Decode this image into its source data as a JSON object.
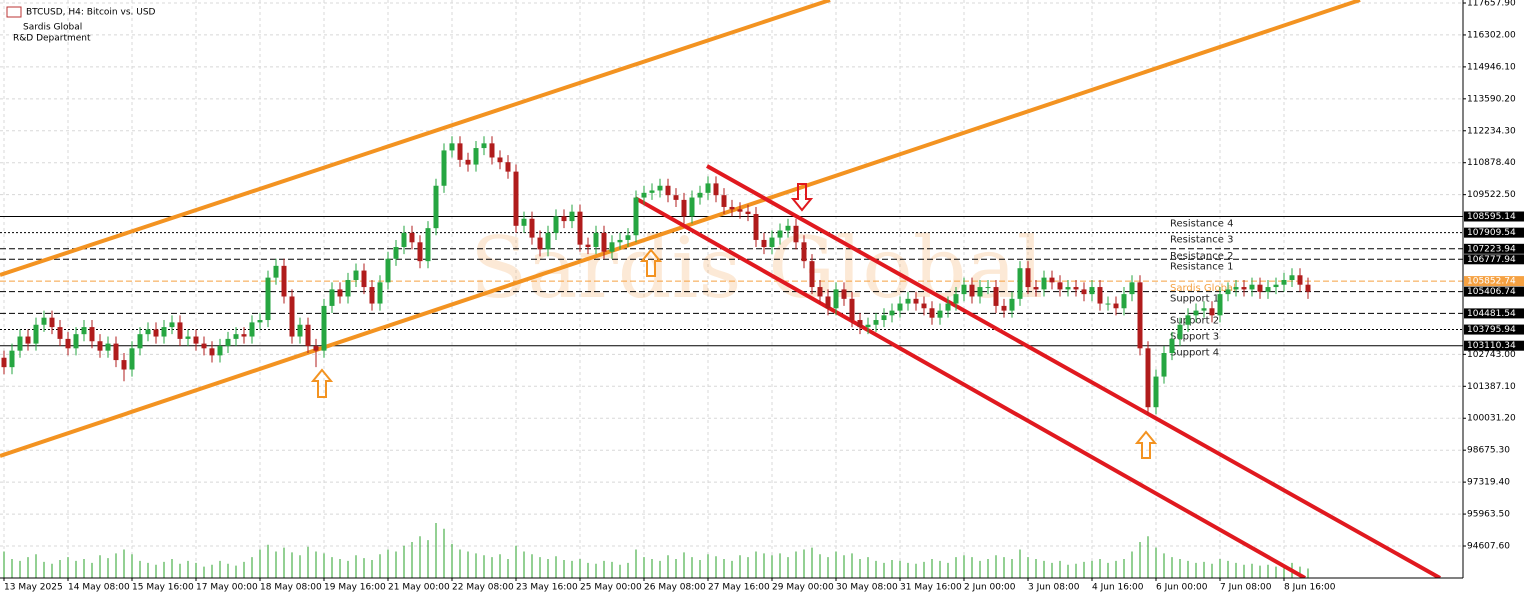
{
  "chart_data": {
    "type": "candlestick",
    "title": "BTCUSD, H4:  Bitcoin vs. USD",
    "subtitle": "Sardis Global",
    "department": "R&D Department",
    "watermark": "Sardis Global",
    "up_color": "#26a641",
    "down_color": "#b01c1c",
    "volume_color": "#27a027",
    "grid": true,
    "categories": [
      "13 May 2025",
      null,
      null,
      null,
      null,
      null,
      null,
      null,
      "14 May 08:00",
      null,
      null,
      null,
      null,
      null,
      null,
      null,
      "15 May 16:00",
      null,
      null,
      null,
      null,
      null,
      null,
      null,
      "17 May 00:00",
      null,
      null,
      null,
      null,
      null,
      null,
      null,
      "18 May 08:00",
      null,
      null,
      null,
      null,
      null,
      null,
      null,
      "19 May 16:00",
      null,
      null,
      null,
      null,
      null,
      null,
      null,
      "21 May 00:00",
      null,
      null,
      null,
      null,
      null,
      null,
      null,
      "22 May 08:00",
      null,
      null,
      null,
      null,
      null,
      null,
      null,
      "23 May 16:00",
      null,
      null,
      null,
      null,
      null,
      null,
      null,
      "25 May 00:00",
      null,
      null,
      null,
      null,
      null,
      null,
      null,
      "26 May 08:00",
      null,
      null,
      null,
      null,
      null,
      null,
      null,
      "27 May 16:00",
      null,
      null,
      null,
      null,
      null,
      null,
      null,
      "29 May 00:00",
      null,
      null,
      null,
      null,
      null,
      null,
      null,
      "30 May 08:00",
      null,
      null,
      null,
      null,
      null,
      null,
      null,
      "31 May 16:00",
      null,
      null,
      null,
      null,
      null,
      null,
      null,
      "2 Jun 00:00",
      null,
      null,
      null,
      null,
      null,
      null,
      null,
      "3 Jun 08:00",
      null,
      null,
      null,
      null,
      null,
      null,
      null,
      "4 Jun 16:00",
      null,
      null,
      null,
      null,
      null,
      null,
      null,
      "6 Jun 00:00",
      null,
      null,
      null,
      null,
      null,
      null,
      null,
      "7 Jun 08:00",
      null,
      null,
      null,
      null,
      null,
      null,
      null,
      "8 Jun 16:00",
      null,
      null,
      null
    ],
    "open": [
      102600,
      102200,
      102900,
      103500,
      103200,
      104000,
      104300,
      103900,
      103400,
      103000,
      103600,
      103900,
      103300,
      102900,
      103200,
      102500,
      102100,
      103000,
      103600,
      103800,
      103500,
      103900,
      104100,
      103400,
      103500,
      103200,
      103000,
      102700,
      103100,
      103400,
      103600,
      103500,
      104100,
      104200,
      106000,
      106500,
      105200,
      103500,
      104000,
      103100,
      102900,
      104800,
      105500,
      105200,
      105900,
      106300,
      105600,
      104900,
      105800,
      106800,
      107300,
      107900,
      107500,
      106700,
      108100,
      109900,
      111400,
      111700,
      111000,
      110800,
      111500,
      111700,
      111100,
      110900,
      110500,
      108200,
      108500,
      107700,
      107200,
      107900,
      108600,
      108400,
      108800,
      107400,
      107300,
      107900,
      107100,
      107500,
      107600,
      107800,
      109400,
      109600,
      109700,
      109900,
      109500,
      109300,
      108600,
      109400,
      109600,
      110000,
      109500,
      109000,
      108900,
      108800,
      108700,
      107600,
      107300,
      107700,
      108000,
      108200,
      107500,
      106700,
      105600,
      105200,
      104700,
      105500,
      105100,
      104200,
      103900,
      104000,
      104200,
      104400,
      104600,
      104900,
      105100,
      104900,
      104700,
      104300,
      104600,
      104900,
      105300,
      105700,
      105200,
      105600,
      105600,
      104800,
      104600,
      105100,
      106400,
      105600,
      105500,
      106000,
      105800,
      105500,
      105600,
      105500,
      105300,
      105600,
      104900,
      104900,
      104700,
      105300,
      105800,
      103000,
      100500,
      101800,
      102800,
      103400,
      104000,
      104400,
      104600,
      104700,
      104400,
      105300,
      105500,
      105600,
      105500,
      105700,
      105400,
      105600,
      105700,
      105900,
      106100,
      105700
    ],
    "high": [
      102900,
      103200,
      103800,
      103800,
      104300,
      104600,
      104600,
      104200,
      103700,
      103900,
      104200,
      104200,
      103600,
      103500,
      103500,
      102800,
      103300,
      103900,
      104100,
      104100,
      104200,
      104400,
      104400,
      103800,
      103800,
      103500,
      103300,
      103400,
      103700,
      103900,
      103900,
      104400,
      104500,
      106300,
      106800,
      106800,
      105500,
      104300,
      104300,
      103400,
      105100,
      105800,
      105800,
      106200,
      106600,
      106600,
      105900,
      106100,
      107100,
      107600,
      108200,
      108200,
      107800,
      108400,
      110200,
      111700,
      112000,
      112000,
      111300,
      111800,
      112000,
      112000,
      111400,
      111200,
      110800,
      108800,
      108800,
      108000,
      108200,
      108900,
      108900,
      109100,
      109100,
      107700,
      108200,
      108200,
      107800,
      107900,
      108100,
      109700,
      109900,
      110000,
      110200,
      110200,
      109800,
      109600,
      109700,
      109900,
      110300,
      110300,
      109800,
      109300,
      109200,
      109100,
      109000,
      107900,
      108000,
      108300,
      108500,
      108500,
      107800,
      107000,
      105900,
      105500,
      105800,
      105800,
      105400,
      104500,
      104300,
      104500,
      104700,
      104900,
      105200,
      105400,
      105400,
      105200,
      105000,
      104900,
      105200,
      105600,
      106000,
      106000,
      105900,
      105900,
      105900,
      105100,
      105400,
      106700,
      106700,
      105900,
      106300,
      106300,
      106100,
      105900,
      105900,
      105800,
      105900,
      105900,
      105200,
      105200,
      105600,
      106100,
      106100,
      103300,
      102100,
      103100,
      103700,
      104300,
      104700,
      104900,
      105000,
      105000,
      105600,
      105800,
      105900,
      105900,
      106000,
      106000,
      105900,
      106000,
      106200,
      106400,
      106400,
      106000
    ],
    "low": [
      101900,
      101900,
      102600,
      102900,
      102900,
      103700,
      103600,
      103100,
      102700,
      102700,
      103300,
      103000,
      102600,
      102600,
      102200,
      101600,
      101800,
      102700,
      103300,
      103200,
      103200,
      103600,
      103100,
      103100,
      102900,
      102700,
      102400,
      102400,
      102800,
      103100,
      103200,
      103200,
      103800,
      103900,
      105700,
      104900,
      103200,
      103200,
      102800,
      102200,
      102600,
      104500,
      104900,
      104900,
      105600,
      105300,
      104600,
      104600,
      105500,
      106500,
      107000,
      107200,
      106400,
      106400,
      107800,
      109600,
      111100,
      110700,
      110500,
      110500,
      111200,
      110800,
      110600,
      110200,
      107900,
      107900,
      107400,
      106900,
      106900,
      107600,
      108100,
      108100,
      107100,
      107000,
      107000,
      106800,
      106800,
      107200,
      107300,
      107500,
      109100,
      109300,
      109400,
      109200,
      109000,
      108300,
      108300,
      109100,
      109300,
      109200,
      108700,
      108600,
      108500,
      108400,
      107300,
      107000,
      107000,
      107400,
      107700,
      107200,
      106400,
      105300,
      104900,
      104400,
      104400,
      104800,
      103900,
      103600,
      103600,
      103700,
      103900,
      104100,
      104300,
      104600,
      104600,
      104400,
      104000,
      104000,
      104300,
      104600,
      105000,
      104900,
      104900,
      105300,
      104500,
      104300,
      104300,
      104800,
      105300,
      105200,
      105200,
      105500,
      105200,
      105200,
      105200,
      105000,
      105000,
      104600,
      104600,
      104400,
      104400,
      105000,
      102700,
      100200,
      100200,
      101500,
      102500,
      103100,
      103700,
      104100,
      104300,
      104100,
      104100,
      105000,
      105200,
      105200,
      105200,
      105100,
      105100,
      105300,
      105400,
      105600,
      105400,
      105100
    ],
    "close": [
      102200,
      102900,
      103500,
      103200,
      104000,
      104300,
      103900,
      103400,
      103000,
      103600,
      103900,
      103300,
      102900,
      103200,
      102500,
      102100,
      103000,
      103600,
      103800,
      103500,
      103900,
      104100,
      103400,
      103500,
      103200,
      103000,
      102700,
      103100,
      103400,
      103600,
      103500,
      104100,
      104200,
      106000,
      106500,
      105200,
      103500,
      104000,
      103100,
      102900,
      104800,
      105500,
      105200,
      105900,
      106300,
      105600,
      104900,
      105800,
      106800,
      107300,
      107900,
      107500,
      106700,
      108100,
      109900,
      111400,
      111700,
      111000,
      110800,
      111500,
      111700,
      111100,
      110900,
      110500,
      108200,
      108500,
      107700,
      107200,
      107900,
      108600,
      108400,
      108800,
      107400,
      107300,
      107900,
      107100,
      107500,
      107600,
      107800,
      109400,
      109600,
      109700,
      109900,
      109500,
      109300,
      108600,
      109400,
      109600,
      110000,
      109500,
      109000,
      108900,
      108800,
      108700,
      107600,
      107300,
      107700,
      108000,
      108200,
      107500,
      106700,
      105600,
      105200,
      104700,
      105500,
      105100,
      104200,
      103900,
      104000,
      104200,
      104400,
      104600,
      104900,
      105100,
      104900,
      104700,
      104300,
      104600,
      104900,
      105300,
      105700,
      105200,
      105600,
      105600,
      104800,
      104600,
      105100,
      106400,
      105600,
      105500,
      106000,
      105800,
      105500,
      105600,
      105500,
      105300,
      105600,
      104900,
      104900,
      104700,
      105300,
      105800,
      103000,
      100500,
      101800,
      102800,
      103400,
      104000,
      104400,
      104600,
      104700,
      104400,
      105300,
      105500,
      105600,
      105500,
      105700,
      105400,
      105600,
      105700,
      105900,
      106100,
      105700,
      105400
    ],
    "volume": [
      28,
      20,
      18,
      22,
      25,
      17,
      15,
      19,
      22,
      18,
      20,
      16,
      24,
      21,
      26,
      30,
      25,
      18,
      16,
      14,
      17,
      20,
      15,
      18,
      16,
      12,
      14,
      18,
      15,
      13,
      17,
      22,
      30,
      35,
      28,
      32,
      27,
      24,
      33,
      28,
      26,
      22,
      20,
      18,
      24,
      21,
      19,
      25,
      30,
      28,
      34,
      38,
      44,
      40,
      58,
      52,
      36,
      30,
      28,
      26,
      24,
      22,
      25,
      20,
      34,
      28,
      25,
      22,
      20,
      23,
      19,
      18,
      20,
      16,
      15,
      18,
      17,
      14,
      16,
      30,
      22,
      20,
      18,
      24,
      20,
      27,
      22,
      19,
      25,
      23,
      20,
      18,
      24,
      22,
      28,
      26,
      24,
      26,
      22,
      28,
      30,
      32,
      25,
      22,
      28,
      24,
      26,
      20,
      22,
      18,
      16,
      19,
      18,
      16,
      15,
      17,
      20,
      18,
      16,
      22,
      24,
      22,
      18,
      20,
      24,
      22,
      20,
      30,
      22,
      20,
      18,
      16,
      18,
      14,
      15,
      17,
      18,
      20,
      16,
      18,
      20,
      28,
      38,
      44,
      32,
      26,
      22,
      20,
      18,
      16,
      17,
      15,
      20,
      18,
      16,
      14,
      15,
      13,
      14,
      12,
      14,
      16,
      12,
      10
    ],
    "ylim": [
      93250,
      117785
    ],
    "yticks": [
      {
        "value": 117657.9,
        "label": "117657.90"
      },
      {
        "value": 116302,
        "label": "116302.00"
      },
      {
        "value": 114946.1,
        "label": "114946.10"
      },
      {
        "value": 113590.2,
        "label": "113590.20"
      },
      {
        "value": 112234.3,
        "label": "112234.30"
      },
      {
        "value": 110878.4,
        "label": "110878.40"
      },
      {
        "value": 109522.5,
        "label": "109522.50"
      },
      {
        "value": 102743,
        "label": "102743.00"
      },
      {
        "value": 101387.1,
        "label": "101387.10"
      },
      {
        "value": 100031.2,
        "label": "100031.20"
      },
      {
        "value": 98675.3,
        "label": "98675.30"
      },
      {
        "value": 97319.4,
        "label": "97319.40"
      },
      {
        "value": 95963.5,
        "label": "95963.50"
      },
      {
        "value": 94607.6,
        "label": "94607.60"
      }
    ],
    "levels": [
      {
        "name": "Resistance 4",
        "value": 108595.14,
        "style": "solid",
        "color": "#000000"
      },
      {
        "name": "Resistance 3",
        "value": 107909.54,
        "style": "dotted",
        "color": "#000000"
      },
      {
        "name": "Resistance 2",
        "value": 107223.94,
        "style": "dashed",
        "color": "#000000"
      },
      {
        "name": "Resistance 1",
        "value": 106777.94,
        "style": "dashed",
        "color": "#000000"
      },
      {
        "name": "Sardis Global",
        "value": 105852.74,
        "style": "dashed",
        "color": "#f5a142"
      },
      {
        "name": "Support 1",
        "value": 105406.74,
        "style": "dashed",
        "color": "#000000"
      },
      {
        "name": "Support 2",
        "value": 104481.54,
        "style": "dashed",
        "color": "#000000"
      },
      {
        "name": "Support 3",
        "value": 103795.94,
        "style": "dotted",
        "color": "#000000"
      },
      {
        "name": "Support 4",
        "value": 103110.34,
        "style": "solid",
        "color": "#000000"
      }
    ]
  }
}
